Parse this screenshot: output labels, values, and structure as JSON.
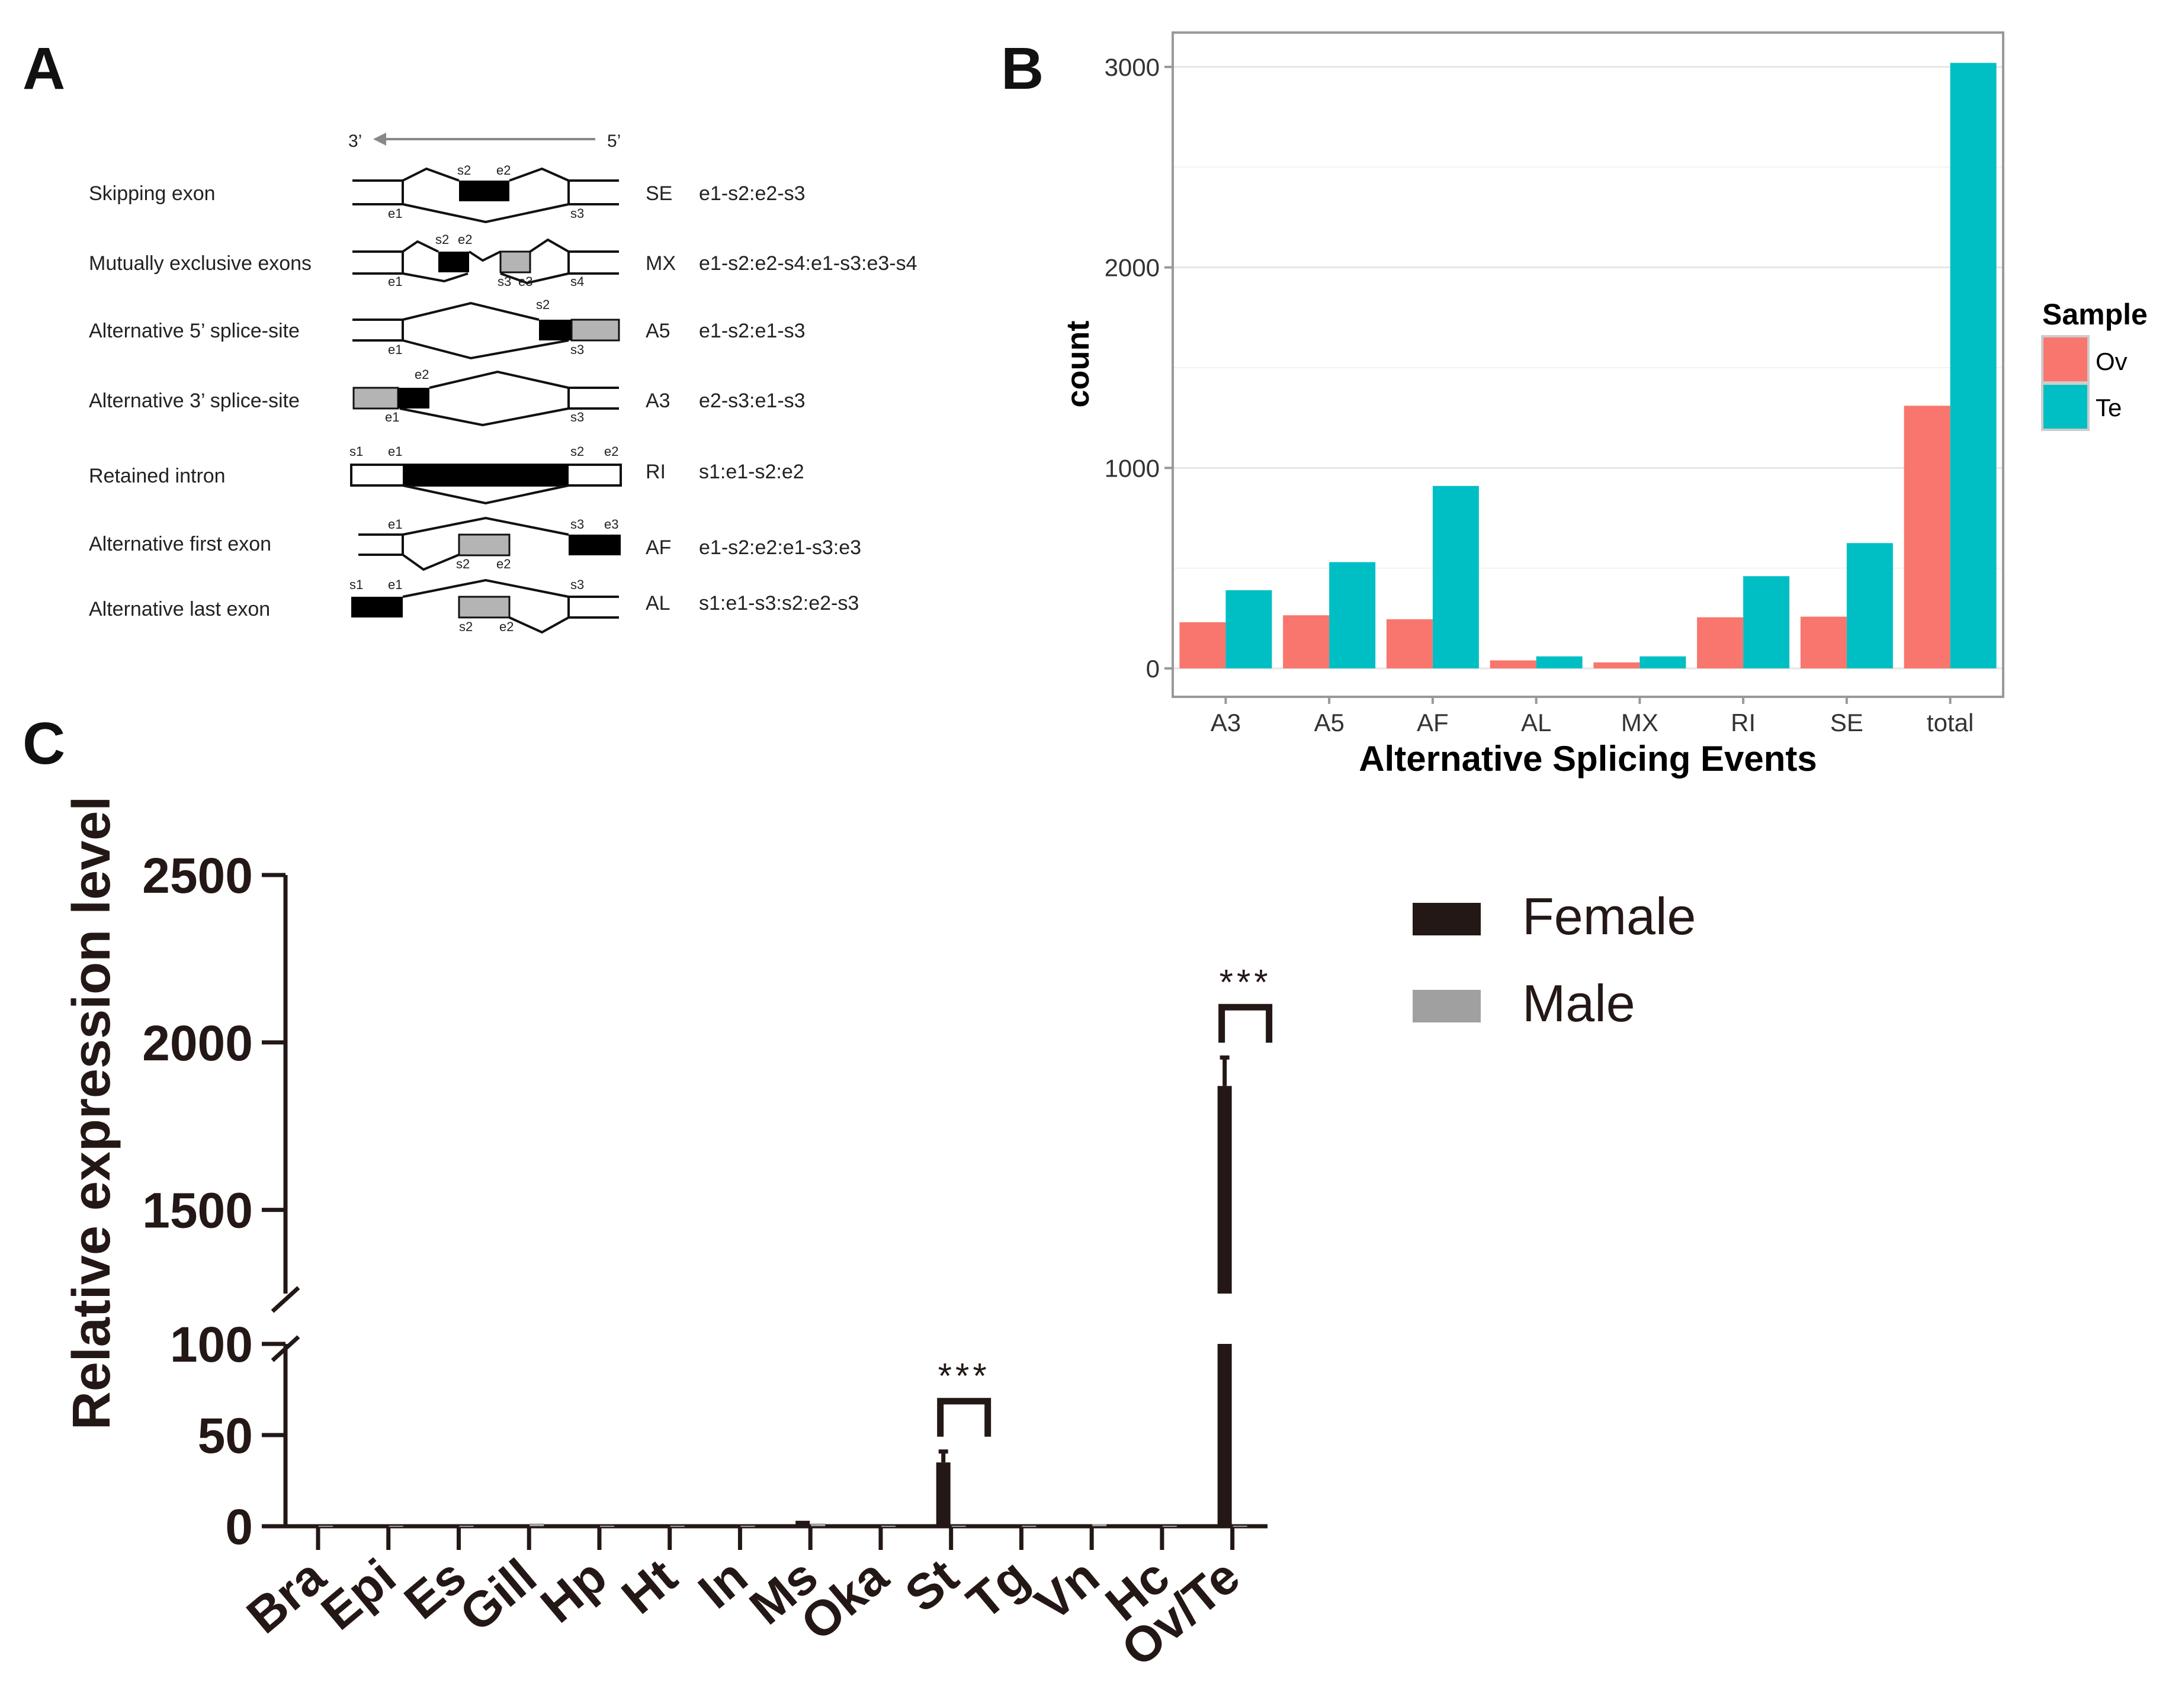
{
  "panel_labels": {
    "a": "A",
    "b": "B",
    "c": "C"
  },
  "panel_a": {
    "direction": {
      "left": "3’",
      "right": "5’"
    },
    "events": [
      {
        "name": "Skipping exon",
        "code": "SE",
        "formula": "e1-s2:e2-s3"
      },
      {
        "name": "Mutually exclusive exons",
        "code": "MX",
        "formula": "e1-s2:e2-s4:e1-s3:e3-s4"
      },
      {
        "name": "Alternative 5’ splice-site",
        "code": "A5",
        "formula": "e1-s2:e1-s3"
      },
      {
        "name": "Alternative 3’ splice-site",
        "code": "A3",
        "formula": "e2-s3:e1-s3"
      },
      {
        "name": "Retained intron",
        "code": "RI",
        "formula": "s1:e1-s2:e2"
      },
      {
        "name": "Alternative first exon",
        "code": "AF",
        "formula": "e1-s2:e2:e1-s3:e3"
      },
      {
        "name": "Alternative last exon",
        "code": "AL",
        "formula": "s1:e1-s3:s2:e2-s3"
      }
    ],
    "site_labels": {
      "s1": "s1",
      "s2": "s2",
      "s3": "s3",
      "s4": "s4",
      "e1": "e1",
      "e2": "e2",
      "e3": "e3"
    }
  },
  "chart_data": [
    {
      "type": "bar",
      "title": "",
      "xlabel": "Alternative Splicing Events",
      "ylabel": "count",
      "categories": [
        "A3",
        "A5",
        "AF",
        "AL",
        "MX",
        "RI",
        "SE",
        "total"
      ],
      "series": [
        {
          "name": "Ov",
          "color": "#f8766d",
          "values": [
            230,
            265,
            245,
            40,
            30,
            255,
            258,
            1310
          ]
        },
        {
          "name": "Te",
          "color": "#00bfc4",
          "values": [
            390,
            530,
            910,
            60,
            60,
            460,
            625,
            3020
          ]
        }
      ],
      "ylim": [
        0,
        3170
      ],
      "yticks": [
        0,
        1000,
        2000,
        3000
      ],
      "legend_title": "Sample",
      "legend_position": "right",
      "grid": true
    },
    {
      "type": "bar",
      "title": "",
      "xlabel": "",
      "ylabel": "Relative expression level",
      "categories": [
        "Bra",
        "Epi",
        "Es",
        "Gill",
        "Hp",
        "Ht",
        "In",
        "Ms",
        "Oka",
        "St",
        "Tg",
        "Vn",
        "Hc",
        "Ov/Te"
      ],
      "series": [
        {
          "name": "Female",
          "color": "#231815",
          "values": [
            0.3,
            0.3,
            0.2,
            0.5,
            0.3,
            0.3,
            0.3,
            3,
            0.3,
            35,
            0.3,
            0.3,
            0.3,
            1870
          ],
          "errors": [
            0,
            0,
            0,
            0,
            0,
            0,
            0,
            0,
            0,
            6,
            0,
            0,
            0,
            85
          ]
        },
        {
          "name": "Male",
          "color": "#a0a0a0",
          "values": [
            0.3,
            0.3,
            0.3,
            1.5,
            0.3,
            0.3,
            0.3,
            1.5,
            0.3,
            0.3,
            0.3,
            1.2,
            0.3,
            0.3
          ],
          "errors": [
            0,
            0,
            0,
            0,
            0,
            0,
            0,
            0,
            0,
            0,
            0,
            0,
            0,
            0
          ]
        }
      ],
      "axis_break": {
        "lower": [
          0,
          100
        ],
        "upper": [
          1250,
          2500
        ]
      },
      "yticks": [
        0,
        50,
        100,
        1500,
        2000,
        2500
      ],
      "significance": [
        {
          "category": "St",
          "label": "***"
        },
        {
          "category": "Ov/Te",
          "label": "***"
        }
      ],
      "legend_position": "top-right"
    }
  ]
}
